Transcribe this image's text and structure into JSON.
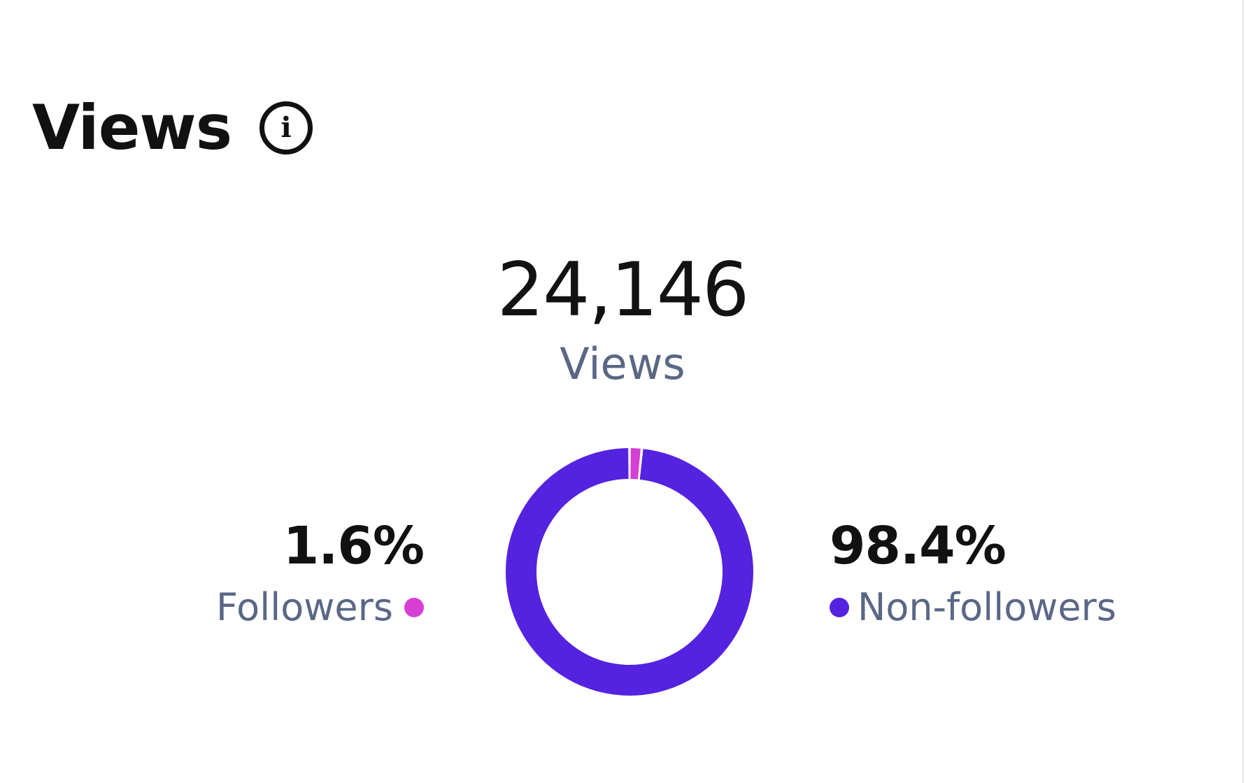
{
  "header": {
    "title": "Views",
    "info_icon": "info-icon",
    "info_glyph": "i"
  },
  "summary": {
    "total": "24,146",
    "total_label": "Views"
  },
  "segments": [
    {
      "percent_label": "1.6%",
      "label": "Followers",
      "color": "#d63fd4"
    },
    {
      "percent_label": "98.4%",
      "label": "Non-followers",
      "color": "#5522e0"
    }
  ],
  "chart_data": {
    "type": "pie",
    "categories": [
      "Followers",
      "Non-followers"
    ],
    "values": [
      1.6,
      98.4
    ],
    "colors": [
      "#d63fd4",
      "#5522e0"
    ],
    "donut": true
  }
}
